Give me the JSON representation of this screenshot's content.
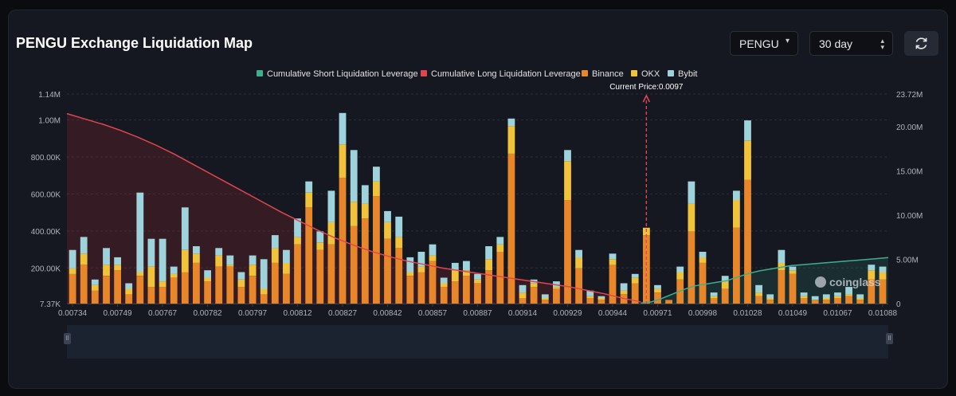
{
  "header": {
    "title": "PENGU Exchange Liquidation Map",
    "symbol_select": "PENGU",
    "period_select": "30 day",
    "refresh_icon": "refresh-icon"
  },
  "colors": {
    "short": "#3fae8f",
    "long": "#e0464f",
    "binance": "#e8872a",
    "okx": "#f0c33a",
    "bybit": "#9fd3db"
  },
  "watermark": "coinglass",
  "chart_data": {
    "type": "bar",
    "title": "PENGU Exchange Liquidation Map",
    "legend": [
      "Cumulative Short Liquidation Leverage",
      "Cumulative Long Liquidation Leverage",
      "Binance",
      "OKX",
      "Bybit"
    ],
    "annotation": "Current Price:0.0097",
    "current_price_index": 51,
    "x_tick_labels": [
      "0.00734",
      "0.00749",
      "0.00767",
      "0.00782",
      "0.00797",
      "0.00812",
      "0.00827",
      "0.00842",
      "0.00857",
      "0.00887",
      "0.00914",
      "0.00929",
      "0.00944",
      "0.00971",
      "0.00998",
      "0.01028",
      "0.01049",
      "0.01067",
      "0.01088"
    ],
    "x_tick_indices": [
      0,
      4,
      8,
      12,
      16,
      20,
      24,
      28,
      32,
      36,
      40,
      44,
      48,
      52,
      56,
      60,
      64,
      68,
      72
    ],
    "y_left_ticks": [
      "1.14M",
      "1.00M",
      "800.00K",
      "600.00K",
      "400.00K",
      "200.00K",
      "7.37K"
    ],
    "y_left_tick_values": [
      1140000,
      1000000,
      800000,
      600000,
      400000,
      200000,
      7370
    ],
    "y_left_range": [
      7370,
      1140000
    ],
    "y_right_ticks": [
      "23.72M",
      "20.00M",
      "15.00M",
      "10.00M",
      "5.00M",
      "0"
    ],
    "y_right_tick_values": [
      23720000,
      20000000,
      15000000,
      10000000,
      5000000,
      0
    ],
    "y_right_range": [
      0,
      23720000
    ],
    "series": [
      {
        "name": "Binance",
        "values": [
          160000,
          210000,
          70000,
          150000,
          180000,
          50000,
          150000,
          90000,
          90000,
          140000,
          170000,
          220000,
          120000,
          200000,
          200000,
          90000,
          150000,
          50000,
          220000,
          160000,
          320000,
          520000,
          290000,
          320000,
          680000,
          420000,
          460000,
          580000,
          350000,
          300000,
          150000,
          170000,
          230000,
          90000,
          120000,
          150000,
          110000,
          180000,
          280000,
          810000,
          30000,
          90000,
          20000,
          80000,
          560000,
          190000,
          30000,
          20000,
          210000,
          50000,
          110000,
          370000,
          60000,
          20000,
          130000,
          390000,
          220000,
          30000,
          80000,
          410000,
          670000,
          40000,
          20000,
          180000,
          160000,
          30000,
          20000,
          20000,
          30000,
          40000,
          20000,
          130000,
          130000
        ]
      },
      {
        "name": "OKX",
        "values": [
          30000,
          60000,
          30000,
          60000,
          30000,
          30000,
          20000,
          110000,
          30000,
          20000,
          120000,
          50000,
          20000,
          60000,
          10000,
          40000,
          60000,
          30000,
          80000,
          60000,
          40000,
          80000,
          40000,
          120000,
          180000,
          130000,
          80000,
          80000,
          90000,
          60000,
          20000,
          30000,
          30000,
          20000,
          60000,
          30000,
          20000,
          60000,
          40000,
          150000,
          30000,
          20000,
          10000,
          10000,
          210000,
          60000,
          10000,
          10000,
          30000,
          20000,
          30000,
          40000,
          20000,
          0,
          40000,
          150000,
          30000,
          10000,
          40000,
          150000,
          210000,
          20000,
          10000,
          40000,
          20000,
          10000,
          0,
          10000,
          10000,
          10000,
          10000,
          50000,
          40000
        ]
      },
      {
        "name": "Bybit",
        "values": [
          100000,
          90000,
          30000,
          90000,
          40000,
          30000,
          430000,
          150000,
          230000,
          40000,
          230000,
          40000,
          40000,
          40000,
          50000,
          40000,
          50000,
          160000,
          70000,
          70000,
          100000,
          60000,
          60000,
          170000,
          170000,
          280000,
          100000,
          80000,
          60000,
          110000,
          80000,
          80000,
          60000,
          30000,
          40000,
          50000,
          30000,
          70000,
          40000,
          40000,
          40000,
          20000,
          20000,
          30000,
          60000,
          40000,
          30000,
          10000,
          30000,
          40000,
          20000,
          0,
          20000,
          0,
          30000,
          120000,
          30000,
          20000,
          30000,
          50000,
          110000,
          40000,
          20000,
          70000,
          20000,
          20000,
          20000,
          20000,
          20000,
          40000,
          20000,
          30000,
          30000
        ]
      }
    ],
    "cumulative_long_leverage": [
      21500000,
      20900000,
      20300000,
      19600000,
      18800000,
      17900000,
      16900000,
      15800000,
      14700000,
      13600000,
      12500000,
      11400000,
      10300000,
      9300000,
      8300000,
      7400000,
      6600000,
      5900000,
      5300000,
      4800000,
      4400000,
      4000000,
      3700000,
      3400000,
      3100000,
      2800000,
      2500000,
      2200000,
      1900000,
      1500000,
      1100000,
      600000,
      200000
    ],
    "cumulative_short_leverage": [
      50000,
      200000,
      600000,
      1100000,
      1600000,
      2000000,
      2200000,
      2400000,
      2600000,
      3000000,
      3400000,
      3700000,
      3900000,
      4100000,
      4300000,
      4400000,
      4500000,
      4600000,
      4700000,
      4800000,
      4900000,
      5000000,
      5100000,
      5200000
    ]
  }
}
